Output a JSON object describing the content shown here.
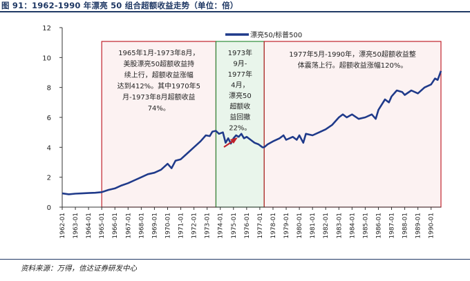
{
  "figure": {
    "title": "图 91：1962-1990 年漂亮 50 组合超额收益走势（单位：倍）",
    "source": "资料来源：万得，信达证券研发中心"
  },
  "chart_data": {
    "type": "line",
    "ylim": [
      0,
      12
    ],
    "yticks": [
      0,
      2,
      4,
      6,
      8,
      10,
      12
    ],
    "xlim": [
      1962.0,
      1990.75
    ],
    "xtick_labels": [
      "1962-01",
      "1963-01",
      "1964-01",
      "1965-01",
      "1966-01",
      "1967-01",
      "1968-01",
      "1969-01",
      "1970-01",
      "1971-01",
      "1972-01",
      "1973-01",
      "1974-01",
      "1975-01",
      "1976-01",
      "1977-01",
      "1978-01",
      "1979-01",
      "1980-01",
      "1981-01",
      "1982-01",
      "1983-01",
      "1984-01",
      "1985-01",
      "1986-01",
      "1987-01",
      "1988-01",
      "1989-01",
      "1990-01"
    ],
    "grid": false,
    "legend_position": "top",
    "series": [
      {
        "name": "漂亮50/标普500",
        "color": "#1f3a8a",
        "points": [
          [
            1962.0,
            0.92
          ],
          [
            1962.5,
            0.86
          ],
          [
            1963.0,
            0.9
          ],
          [
            1963.5,
            0.92
          ],
          [
            1964.0,
            0.94
          ],
          [
            1964.5,
            0.96
          ],
          [
            1965.0,
            1.0
          ],
          [
            1965.5,
            1.15
          ],
          [
            1966.0,
            1.25
          ],
          [
            1966.5,
            1.45
          ],
          [
            1967.0,
            1.6
          ],
          [
            1967.5,
            1.8
          ],
          [
            1968.0,
            2.0
          ],
          [
            1968.5,
            2.2
          ],
          [
            1969.0,
            2.3
          ],
          [
            1969.5,
            2.5
          ],
          [
            1970.0,
            2.9
          ],
          [
            1970.3,
            2.6
          ],
          [
            1970.6,
            3.1
          ],
          [
            1971.0,
            3.2
          ],
          [
            1971.5,
            3.6
          ],
          [
            1972.0,
            4.0
          ],
          [
            1972.5,
            4.4
          ],
          [
            1972.9,
            4.8
          ],
          [
            1973.2,
            4.75
          ],
          [
            1973.4,
            5.05
          ],
          [
            1973.67,
            5.1
          ],
          [
            1973.9,
            4.9
          ],
          [
            1974.2,
            5.0
          ],
          [
            1974.4,
            4.3
          ],
          [
            1974.6,
            4.6
          ],
          [
            1974.8,
            4.25
          ],
          [
            1975.0,
            4.6
          ],
          [
            1975.2,
            4.8
          ],
          [
            1975.4,
            4.7
          ],
          [
            1975.6,
            4.9
          ],
          [
            1975.8,
            4.6
          ],
          [
            1976.0,
            4.7
          ],
          [
            1976.3,
            4.5
          ],
          [
            1976.6,
            4.3
          ],
          [
            1976.9,
            4.2
          ],
          [
            1977.2,
            4.0
          ],
          [
            1977.33,
            4.0
          ],
          [
            1977.6,
            4.2
          ],
          [
            1978.0,
            4.4
          ],
          [
            1978.5,
            4.6
          ],
          [
            1978.8,
            4.8
          ],
          [
            1979.0,
            4.5
          ],
          [
            1979.5,
            4.7
          ],
          [
            1979.8,
            4.5
          ],
          [
            1980.0,
            4.8
          ],
          [
            1980.3,
            4.3
          ],
          [
            1980.5,
            4.9
          ],
          [
            1981.0,
            4.8
          ],
          [
            1981.5,
            5.0
          ],
          [
            1982.0,
            5.2
          ],
          [
            1982.5,
            5.5
          ],
          [
            1983.0,
            6.0
          ],
          [
            1983.3,
            6.2
          ],
          [
            1983.6,
            6.0
          ],
          [
            1984.0,
            6.2
          ],
          [
            1984.5,
            5.9
          ],
          [
            1985.0,
            6.0
          ],
          [
            1985.5,
            6.2
          ],
          [
            1985.8,
            5.9
          ],
          [
            1986.0,
            6.5
          ],
          [
            1986.5,
            7.2
          ],
          [
            1986.8,
            7.0
          ],
          [
            1987.0,
            7.4
          ],
          [
            1987.4,
            7.8
          ],
          [
            1987.8,
            7.7
          ],
          [
            1988.0,
            7.5
          ],
          [
            1988.5,
            7.8
          ],
          [
            1989.0,
            7.6
          ],
          [
            1989.5,
            8.0
          ],
          [
            1990.0,
            8.2
          ],
          [
            1990.3,
            8.6
          ],
          [
            1990.5,
            8.5
          ],
          [
            1990.75,
            9.1
          ]
        ]
      }
    ],
    "periods": [
      {
        "x0": 1965.0,
        "x1": 1973.67,
        "stroke": "#c0202a",
        "fill": "rgba(200,30,40,0.06)",
        "lines": [
          "1965年1月-1973年8月，",
          "美股漂亮50超额收益持",
          "续上行，超额收益涨幅",
          "达到412%。其中1970年5",
          "月-1973年8月超额收益",
          "74%。"
        ]
      },
      {
        "x0": 1973.67,
        "x1": 1977.33,
        "stroke": "#2e8b3a",
        "fill": "rgba(40,160,60,0.10)",
        "lines": [
          "1973年",
          "9月-",
          "1977年",
          "4月，",
          "漂亮50",
          "超额收",
          "益回撤",
          "22%。"
        ]
      },
      {
        "x0": 1977.33,
        "x1": 1990.75,
        "stroke": "#c0202a",
        "fill": "rgba(200,30,40,0.06)",
        "lines": [
          "1977年5月-1990年，漂亮50超额收益整",
          "体震荡上行。超额收益涨幅120%。"
        ]
      }
    ]
  }
}
